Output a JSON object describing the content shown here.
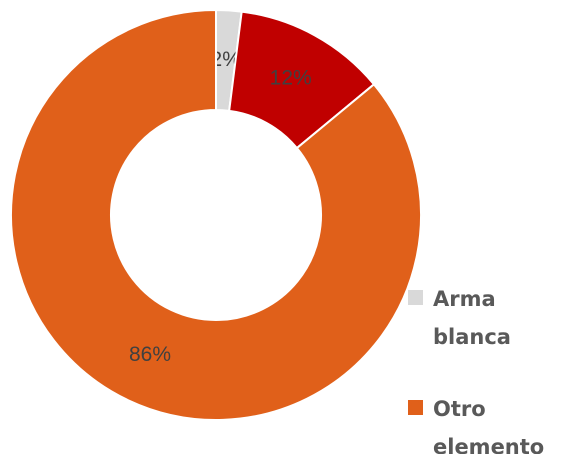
{
  "chart_data": {
    "type": "donut",
    "categories": [
      "Arma blanca",
      null,
      "Otro elemento"
    ],
    "values": [
      2,
      12,
      86
    ],
    "value_labels": [
      "2%",
      "12%",
      "86%"
    ],
    "colors": [
      "#d9d9d9",
      "#c00000",
      "#e0601a"
    ],
    "legend": "right"
  }
}
